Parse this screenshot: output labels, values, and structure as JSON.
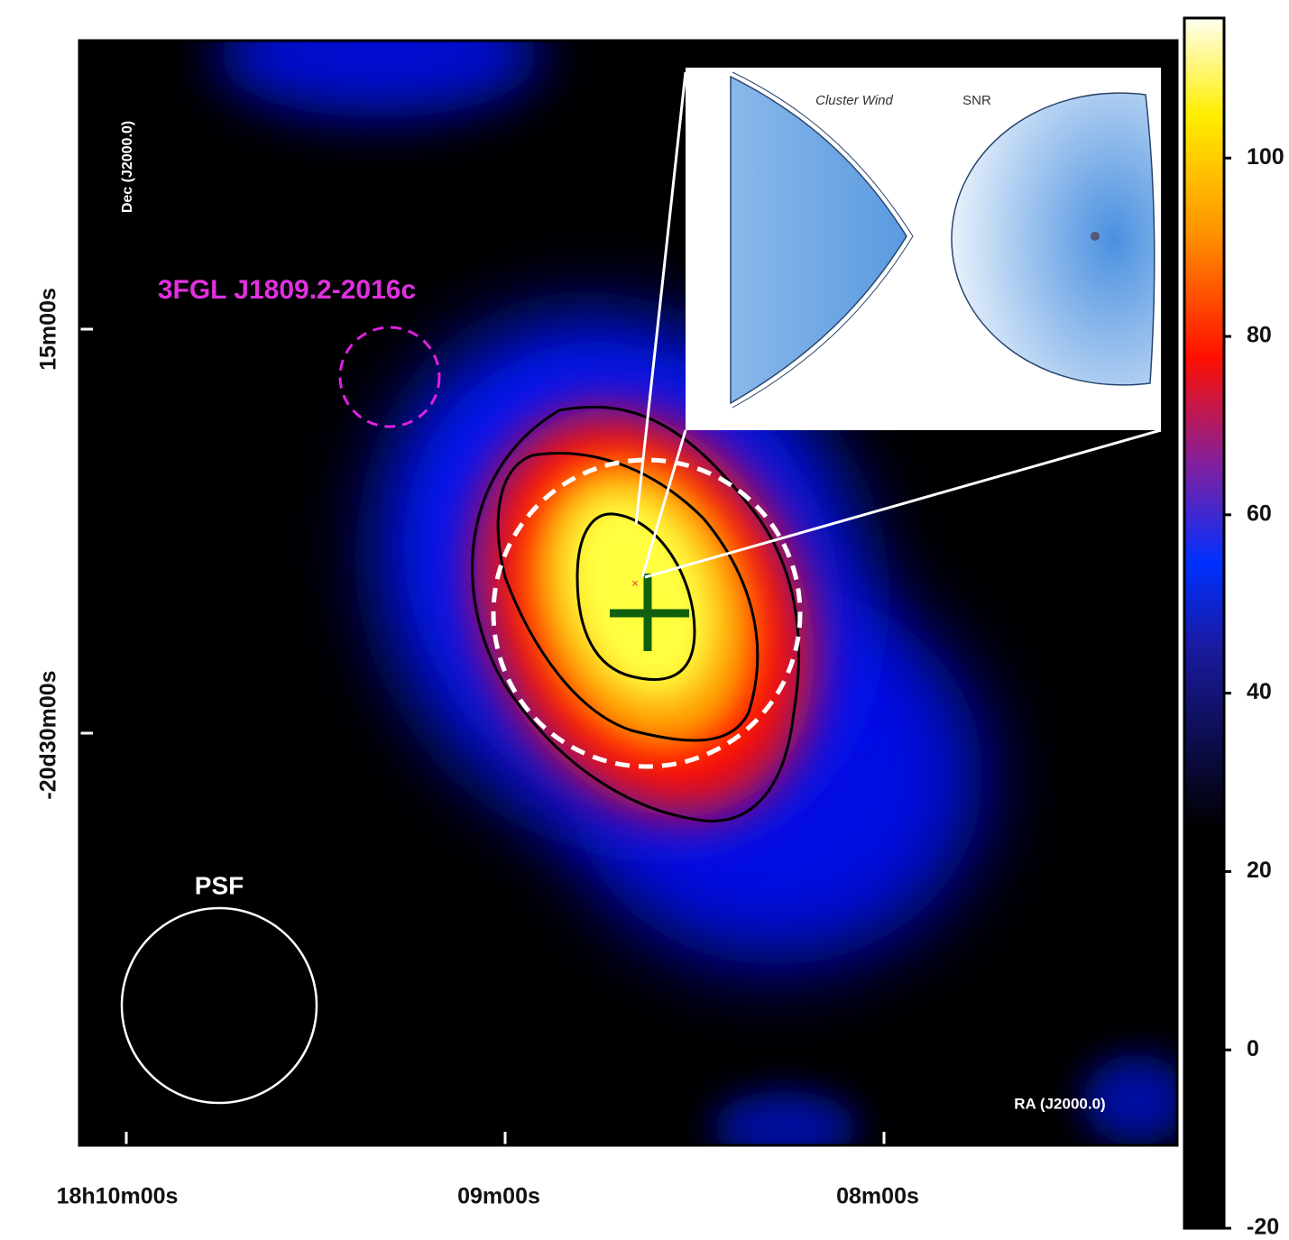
{
  "chart_data": {
    "type": "skymap",
    "x_label": "RA (J2000.0)",
    "y_label": "Dec (J2000.0)",
    "xticks": [
      "18h10m00s",
      "09m00s",
      "08m00s"
    ],
    "yticks": [
      "15m00s",
      "-20d30m00s"
    ],
    "colorbar": {
      "lim": [
        -20,
        115.7
      ],
      "ticks": [
        -20,
        0,
        20,
        40,
        60,
        80,
        100
      ]
    },
    "annotations": {
      "source": "3FGL J1809.2-2016c",
      "psf": "PSF"
    },
    "inset": {
      "left_label": "Cluster Wind",
      "right_label": "SNR"
    }
  }
}
